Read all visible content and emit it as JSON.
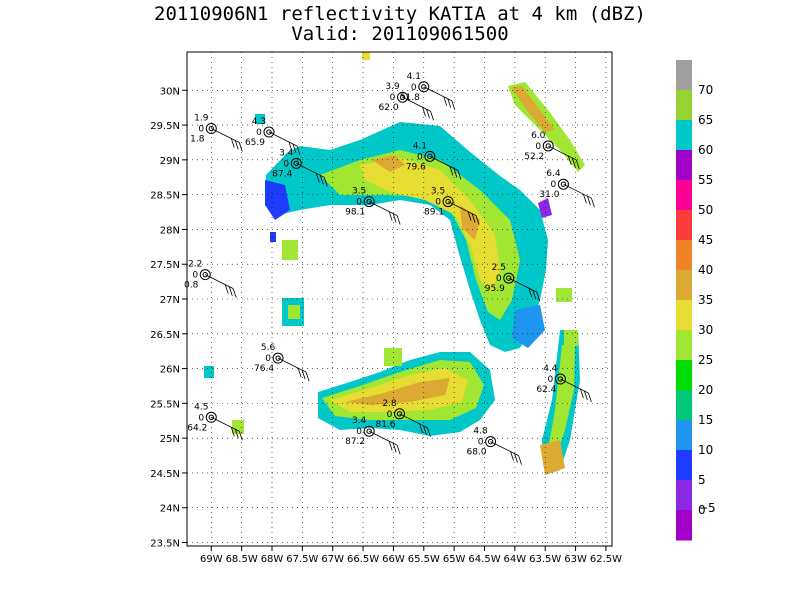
{
  "title": "20110906N1 reflectivity KATIA at 4 km (dBZ)",
  "subtitle": "Valid: 201109061500",
  "map": {
    "lon_range": [
      -69.4,
      -62.4
    ],
    "lat_range": [
      23.45,
      30.55
    ],
    "x_ticks": [
      "69W",
      "68.5W",
      "68W",
      "67.5W",
      "67W",
      "66.5W",
      "66W",
      "65.5W",
      "65W",
      "64.5W",
      "64W",
      "63.5W",
      "63W",
      "62.5W"
    ],
    "y_ticks": [
      "30N",
      "29.5N",
      "29N",
      "28.5N",
      "28N",
      "27.5N",
      "27N",
      "26.5N",
      "26N",
      "25.5N",
      "25N",
      "24.5N",
      "24N",
      "23.5N"
    ]
  },
  "colorbar": {
    "labels": [
      "70",
      "65",
      "60",
      "55",
      "50",
      "45",
      "40",
      "35",
      "30",
      "25",
      "20",
      "15",
      "10",
      "5",
      "0",
      "−5"
    ],
    "colors": [
      "#a0a0a0",
      "#96d232",
      "#00c8c8",
      "#a000c8",
      "#ff0096",
      "#fa3c3c",
      "#f08228",
      "#dcaa32",
      "#e6dc32",
      "#a0e632",
      "#00dc00",
      "#00c878",
      "#1e96f0",
      "#1e3cff",
      "#8c28e6",
      "#a000c8"
    ]
  },
  "stations": [
    {
      "top": "4.1",
      "bottom": "51.8",
      "lon": -65.5,
      "lat": 30.05
    },
    {
      "top": "3.9",
      "bottom": "62.0",
      "lon": -65.85,
      "lat": 29.9
    },
    {
      "top": "1.9",
      "bottom": "1.8",
      "lon": -69.0,
      "lat": 29.45
    },
    {
      "top": "4.3",
      "bottom": "65.9",
      "lon": -68.05,
      "lat": 29.4
    },
    {
      "top": "3.4",
      "bottom": "87.4",
      "lon": -67.6,
      "lat": 28.95
    },
    {
      "top": "4.1",
      "bottom": "79.6",
      "lon": -65.4,
      "lat": 29.05
    },
    {
      "top": "6.0",
      "bottom": "52.2",
      "lon": -63.45,
      "lat": 29.2
    },
    {
      "top": "6.4",
      "bottom": "31.0",
      "lon": -63.2,
      "lat": 28.65
    },
    {
      "top": "3.5",
      "bottom": "98.1",
      "lon": -66.4,
      "lat": 28.4
    },
    {
      "top": "3.5",
      "bottom": "89.1",
      "lon": -65.1,
      "lat": 28.4
    },
    {
      "top": "2.2",
      "bottom": "0.8",
      "lon": -69.1,
      "lat": 27.35
    },
    {
      "top": "2.5",
      "bottom": "95.9",
      "lon": -64.1,
      "lat": 27.3
    },
    {
      "top": "5.6",
      "bottom": "76.4",
      "lon": -67.9,
      "lat": 26.15
    },
    {
      "top": "4.4",
      "bottom": "62.4",
      "lon": -63.25,
      "lat": 25.85
    },
    {
      "top": "4.5",
      "bottom": "64.2",
      "lon": -69.0,
      "lat": 25.3
    },
    {
      "top": "2.8",
      "bottom": "81.6",
      "lon": -65.9,
      "lat": 25.35
    },
    {
      "top": "3.4",
      "bottom": "87.2",
      "lon": -66.4,
      "lat": 25.1
    },
    {
      "top": "4.8",
      "bottom": "68.0",
      "lon": -64.4,
      "lat": 24.95
    }
  ]
}
